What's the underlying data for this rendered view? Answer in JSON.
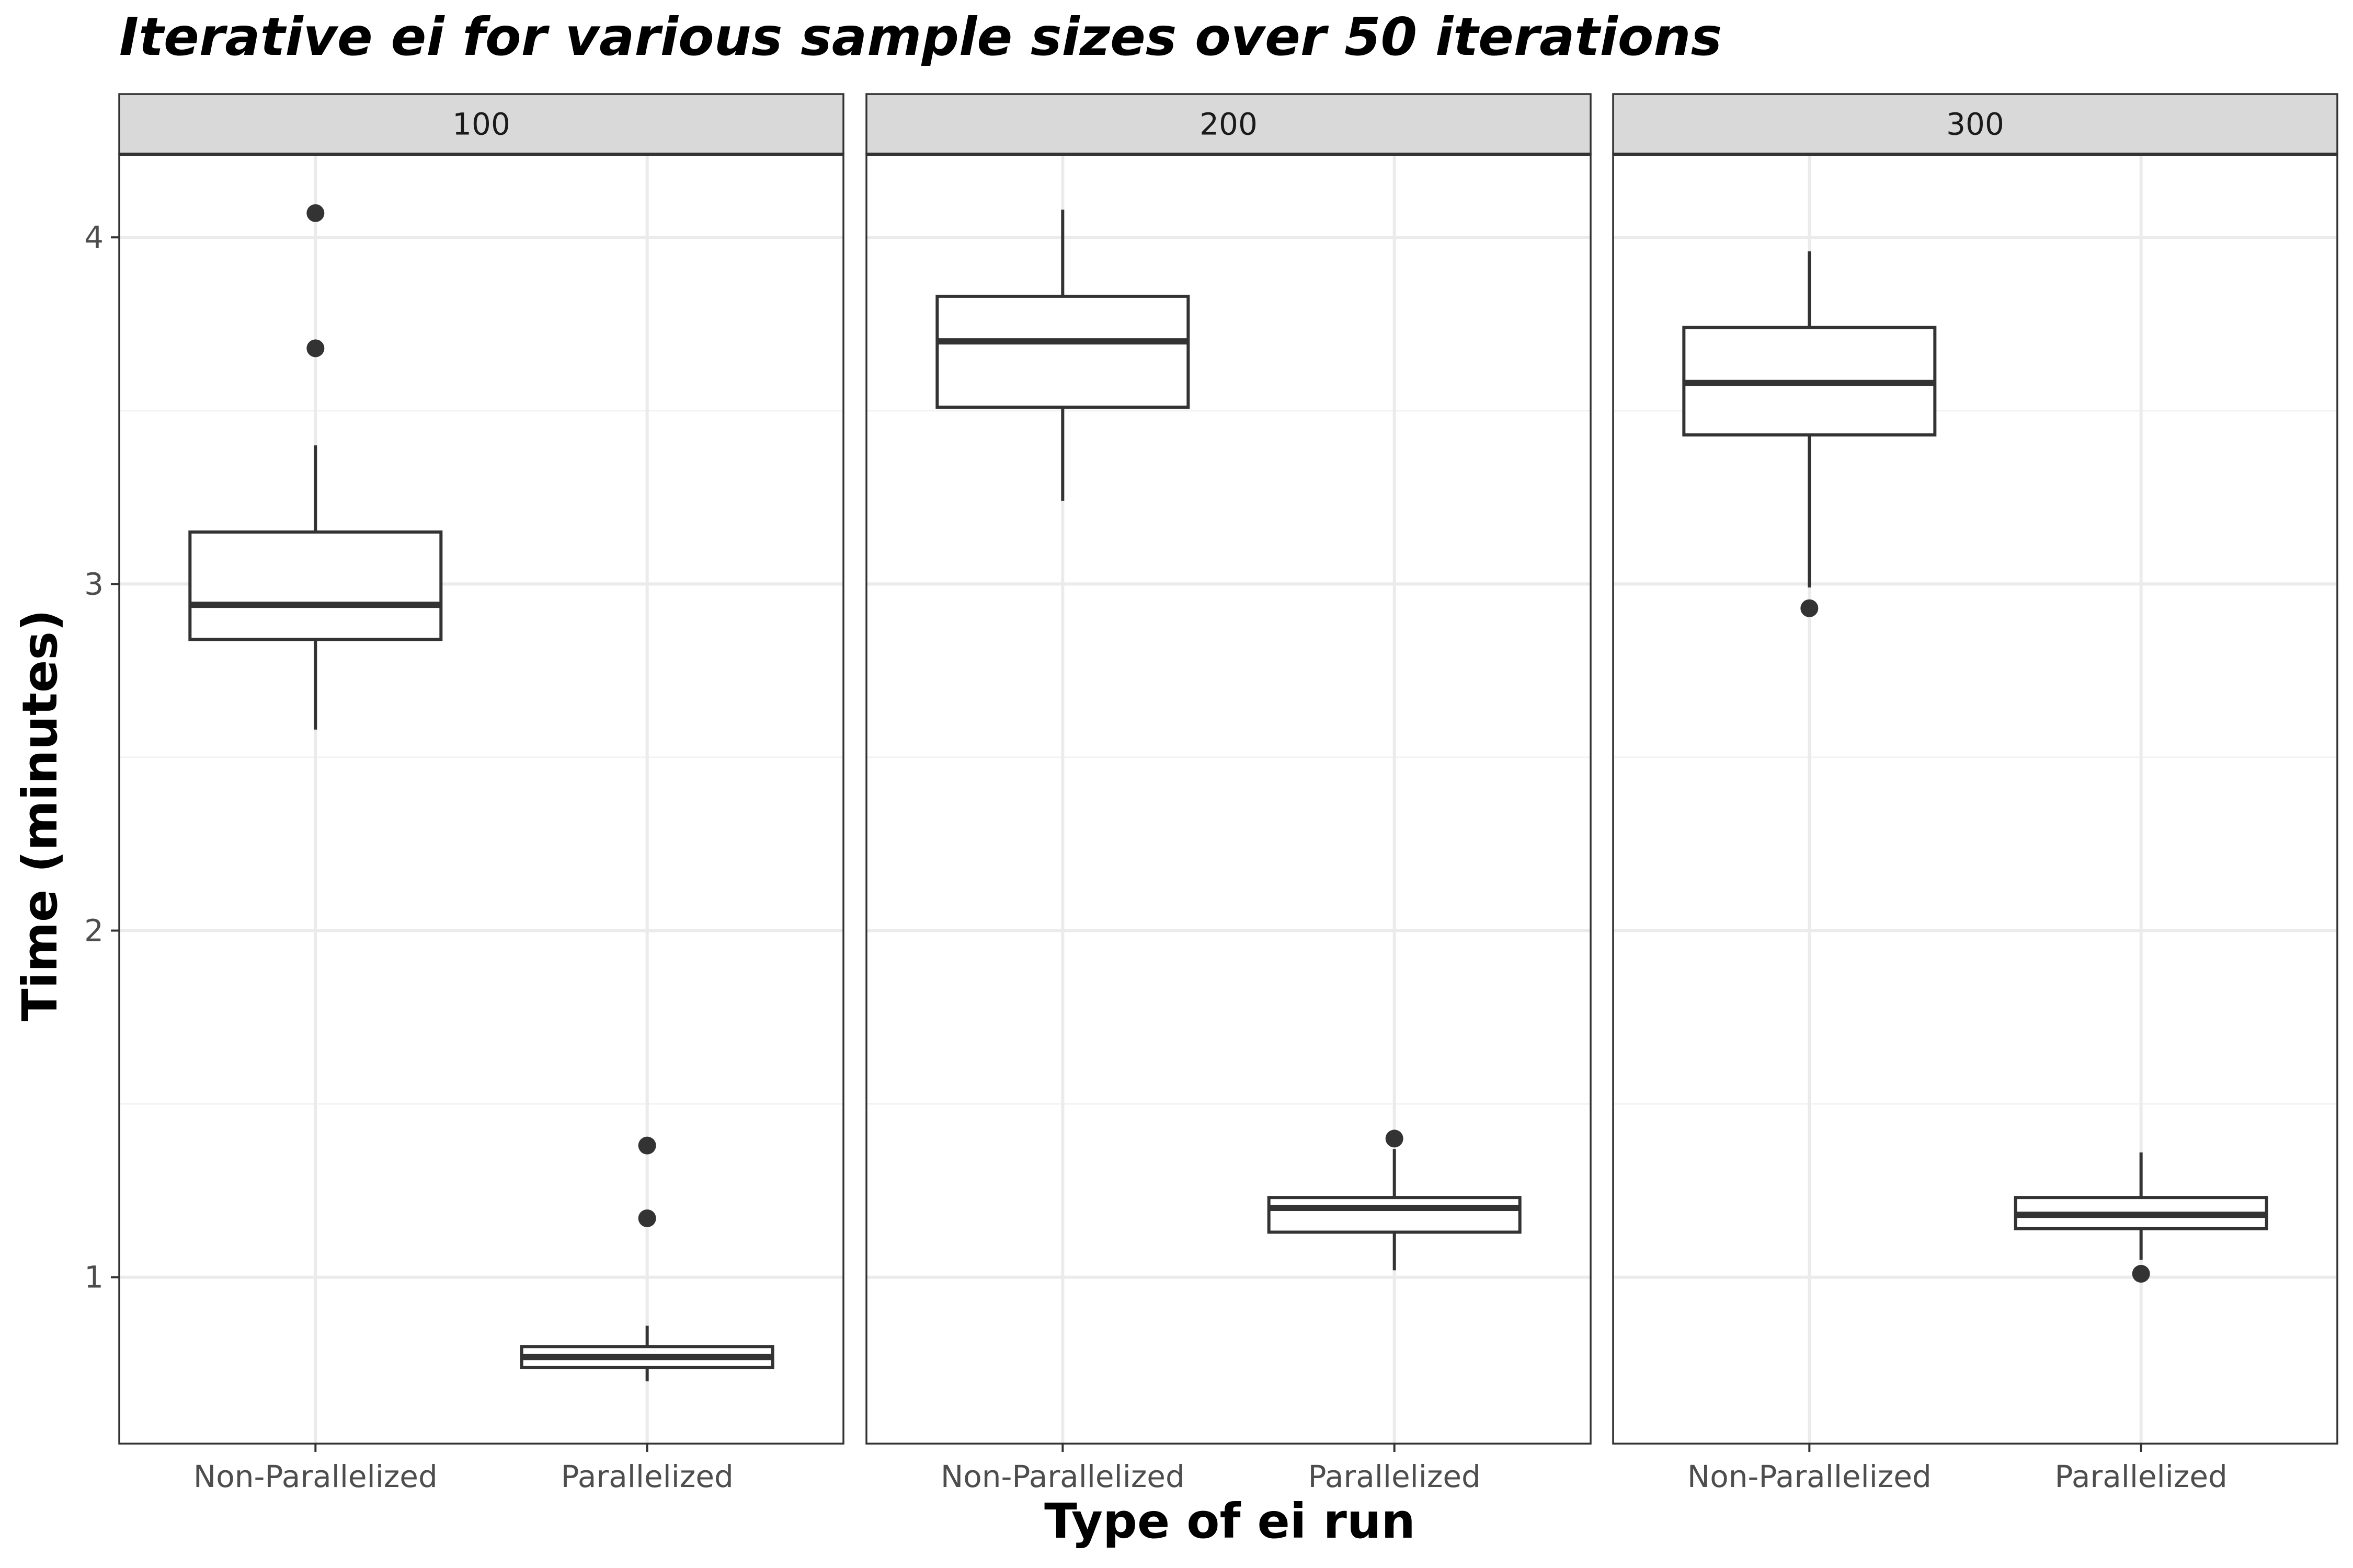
{
  "chart_data": {
    "type": "boxplot",
    "title": "Iterative ei for various sample sizes over 50 iterations",
    "xlabel": "Type of ei run",
    "ylabel": "Time (minutes)",
    "ylim": [
      0.52,
      4.24
    ],
    "yticks": [
      1,
      2,
      3,
      4
    ],
    "grid": true,
    "categories": [
      "Non-Parallelized",
      "Parallelized"
    ],
    "panels": [
      {
        "label": "100",
        "boxes": [
          {
            "category": "Non-Parallelized",
            "whisker_low": 2.58,
            "q1": 2.84,
            "median": 2.94,
            "q3": 3.15,
            "whisker_high": 3.4,
            "outliers": [
              3.68,
              4.07
            ]
          },
          {
            "category": "Parallelized",
            "whisker_low": 0.7,
            "q1": 0.74,
            "median": 0.77,
            "q3": 0.8,
            "whisker_high": 0.86,
            "outliers": [
              1.17,
              1.38
            ]
          }
        ]
      },
      {
        "label": "200",
        "boxes": [
          {
            "category": "Non-Parallelized",
            "whisker_low": 3.24,
            "q1": 3.51,
            "median": 3.7,
            "q3": 3.83,
            "whisker_high": 4.08,
            "outliers": []
          },
          {
            "category": "Parallelized",
            "whisker_low": 1.02,
            "q1": 1.13,
            "median": 1.2,
            "q3": 1.23,
            "whisker_high": 1.37,
            "outliers": [
              1.4
            ]
          }
        ]
      },
      {
        "label": "300",
        "boxes": [
          {
            "category": "Non-Parallelized",
            "whisker_low": 2.99,
            "q1": 3.43,
            "median": 3.58,
            "q3": 3.74,
            "whisker_high": 3.96,
            "outliers": [
              2.93
            ]
          },
          {
            "category": "Parallelized",
            "whisker_low": 1.05,
            "q1": 1.14,
            "median": 1.18,
            "q3": 1.23,
            "whisker_high": 1.36,
            "outliers": [
              1.01
            ]
          }
        ]
      }
    ],
    "colors": {
      "box_stroke": "#333333",
      "box_fill": "#ffffff",
      "outlier": "#333333",
      "grid_major": "#ebebeb",
      "grid_minor": "#f2f2f2",
      "strip_fill": "#d9d9d9",
      "panel_border": "#333333"
    }
  }
}
